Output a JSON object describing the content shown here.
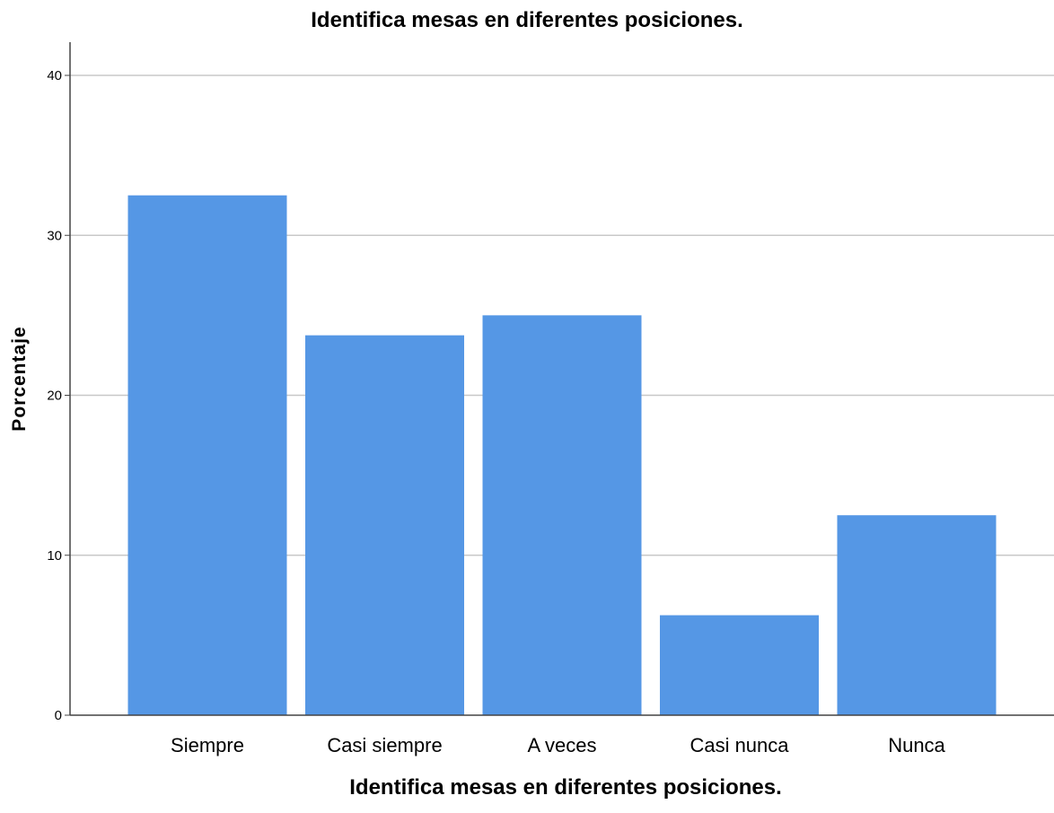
{
  "chart_data": {
    "type": "bar",
    "title": "Identifica mesas en diferentes posiciones.",
    "xlabel": "Identifica mesas en diferentes posiciones.",
    "ylabel": "Porcentaje",
    "categories": [
      "Siempre",
      "Casi siempre",
      "A veces",
      "Casi nunca",
      "Nunca"
    ],
    "values": [
      32.5,
      23.75,
      25.0,
      6.25,
      12.5
    ],
    "ylim": [
      0,
      42
    ],
    "yticks": [
      0,
      10,
      20,
      30,
      40
    ],
    "ytick_labels": [
      "0",
      "10",
      "20",
      "30",
      "40"
    ],
    "grid": true,
    "bar_color": "#5597e5",
    "grid_color": "#c8c8c8",
    "axis_color": "#444444"
  }
}
